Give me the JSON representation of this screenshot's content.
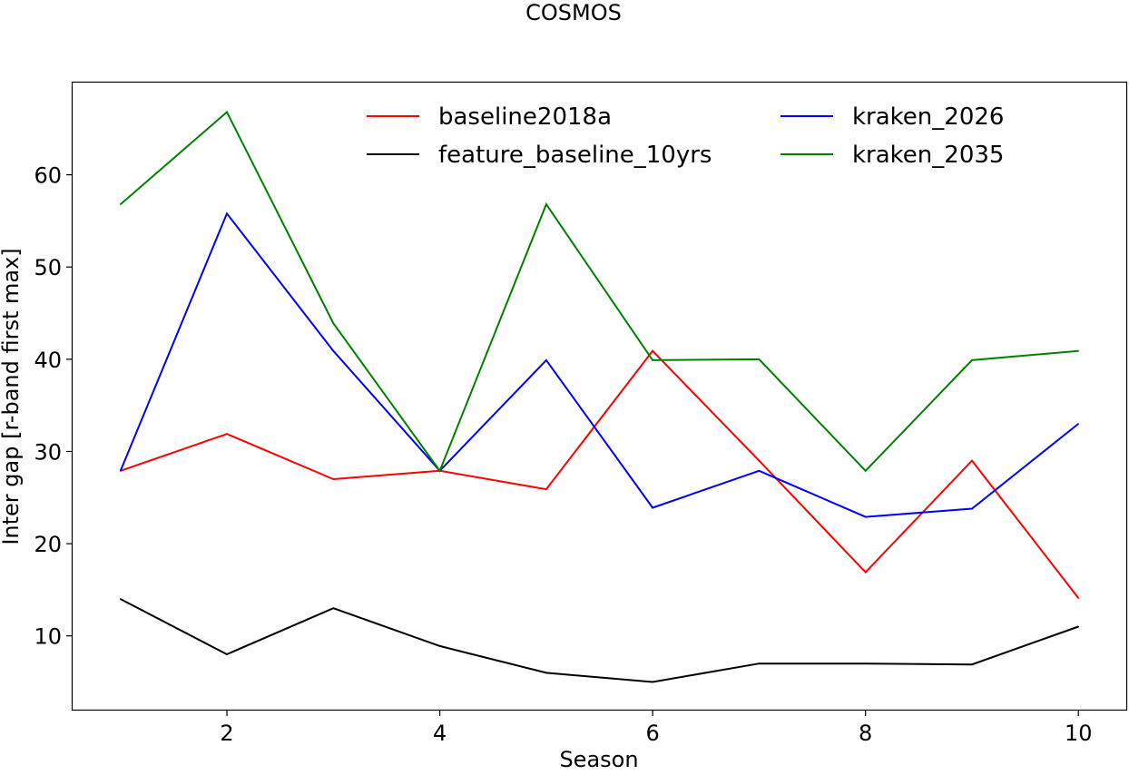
{
  "chart_data": {
    "type": "line",
    "title": "COSMOS",
    "xlabel": "Season",
    "ylabel": "Inter gap [r-band first max]",
    "xlim": [
      0.55,
      10.45
    ],
    "ylim": [
      2,
      70
    ],
    "xticks": [
      2,
      4,
      6,
      8,
      10
    ],
    "yticks": [
      10,
      20,
      30,
      40,
      50,
      60
    ],
    "grid": false,
    "legend_placement": "top-center",
    "legend_columns": 2,
    "x": [
      1,
      2,
      3,
      4,
      5,
      6,
      7,
      8,
      9,
      10
    ],
    "series": [
      {
        "name": "baseline2018a",
        "color": "#ff0000",
        "values": [
          27.9,
          31.9,
          27.0,
          27.9,
          25.9,
          40.9,
          29.0,
          16.9,
          29.0,
          14.1
        ]
      },
      {
        "name": "feature_baseline_10yrs",
        "color": "#000000",
        "values": [
          14.0,
          8.0,
          13.0,
          8.9,
          6.0,
          5.0,
          7.0,
          7.0,
          6.9,
          11.0
        ]
      },
      {
        "name": "kraken_2026",
        "color": "#0000ff",
        "values": [
          27.9,
          55.8,
          40.9,
          27.9,
          39.9,
          23.9,
          27.9,
          22.9,
          23.8,
          33.0
        ]
      },
      {
        "name": "kraken_2035",
        "color": "#008000",
        "values": [
          56.8,
          66.8,
          43.9,
          27.9,
          56.8,
          39.9,
          40.0,
          27.9,
          39.9,
          40.9
        ]
      }
    ]
  }
}
